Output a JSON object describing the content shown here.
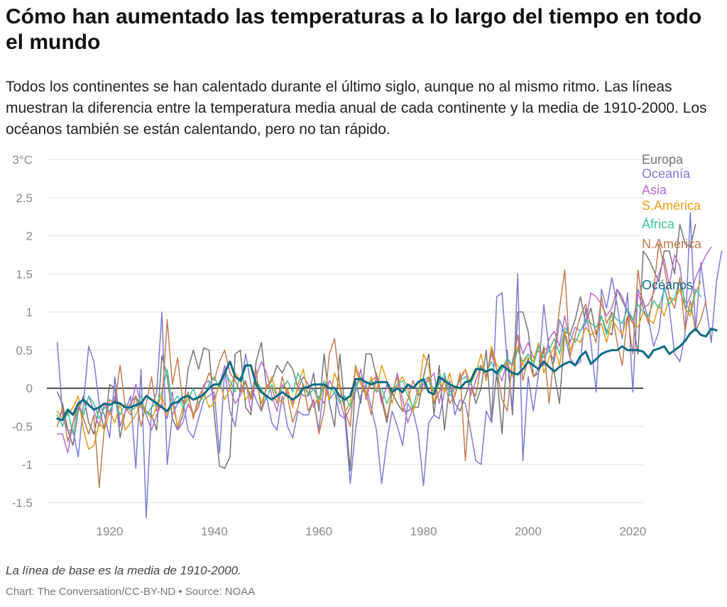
{
  "header": {
    "title": "Cómo han aumentado las temperaturas a lo largo del tiempo en todo el mundo",
    "subtitle": "Todos los continentes se han calentado durante el último siglo, aunque no al mismo ritmo. Las líneas muestran la diferencia entre la temperatura media anual de cada continente y la media de 1910-2000. Los océanos también se están calentando, pero no tan rápido."
  },
  "footer": {
    "note": "La línea de base es la media de 1910-2000.",
    "source": "Chart: The Conversation/CC-BY-ND • Source: NOAA"
  },
  "chart_data": {
    "type": "line",
    "title": "Cómo han aumentado las temperaturas a lo largo del tiempo en todo el mundo",
    "xlabel": "",
    "ylabel": "",
    "xlim": [
      1908,
      2022
    ],
    "ylim": [
      -1.75,
      3.0
    ],
    "grid": true,
    "legend_position": "right",
    "y_ticks": [
      {
        "value": 3,
        "label": "3°C"
      },
      {
        "value": 2.5,
        "label": "2.5"
      },
      {
        "value": 2,
        "label": "2"
      },
      {
        "value": 1.5,
        "label": "1.5"
      },
      {
        "value": 1,
        "label": "1"
      },
      {
        "value": 0.5,
        "label": "0.5"
      },
      {
        "value": 0,
        "label": "0"
      },
      {
        "value": -0.5,
        "label": "-0.5"
      },
      {
        "value": -1,
        "label": "-1"
      },
      {
        "value": -1.5,
        "label": "-1.5"
      }
    ],
    "x_ticks": [
      {
        "value": 1920,
        "label": "1920"
      },
      {
        "value": 1940,
        "label": "1940"
      },
      {
        "value": 1960,
        "label": "1960"
      },
      {
        "value": 1980,
        "label": "1980"
      },
      {
        "value": 2000,
        "label": "2000"
      },
      {
        "value": 2020,
        "label": "2020"
      }
    ],
    "x_start": 1910,
    "series": [
      {
        "name": "Europa",
        "color": "#737373",
        "width": 1.5,
        "values": [
          -0.05,
          -0.2,
          -0.55,
          -0.75,
          -0.3,
          -0.1,
          -0.45,
          -0.6,
          -0.25,
          -0.55,
          0.05,
          0.0,
          -0.65,
          -0.3,
          -0.2,
          -0.1,
          -0.25,
          -0.3,
          -0.35,
          -0.55,
          0.43,
          0.15,
          -0.4,
          -0.55,
          -0.35,
          0.25,
          0.5,
          0.25,
          0.53,
          0.5,
          -0.35,
          -1.02,
          -1.05,
          -0.9,
          0.45,
          0.5,
          -0.25,
          -0.35,
          0.35,
          0.6,
          0.0,
          0.1,
          0.3,
          0.2,
          0.35,
          0.25,
          0.0,
          -0.1,
          -0.1,
          0.2,
          -0.3,
          0.45,
          -0.2,
          -0.5,
          0.45,
          -0.3,
          -1.08,
          0.1,
          -0.2,
          0.45,
          0.45,
          0.15,
          -0.15,
          -0.45,
          -0.05,
          -0.2,
          -0.3,
          -0.3,
          -0.25,
          -0.25,
          0.15,
          0.45,
          -0.35,
          0.3,
          -0.55,
          0.05,
          -0.2,
          -0.3,
          -0.1,
          0.1,
          -0.2,
          0.0,
          0.5,
          -0.45,
          0.2,
          -0.6,
          0.5,
          -0.35,
          1.0,
          1.0,
          0.75,
          0.15,
          0.2,
          0.5,
          0.55,
          0.2,
          -0.2,
          0.75,
          0.7,
          0.9,
          1.2,
          0.85,
          1.05,
          0.7,
          0.95,
          0.75,
          0.7,
          1.3,
          1.15,
          1.0,
          0.9,
          0.45,
          1.8,
          1.7,
          1.55,
          1.4,
          1.8,
          1.8,
          1.5,
          2.15,
          1.9,
          1.85,
          2.15
        ]
      },
      {
        "name": "Oceanía",
        "color": "#7a7ad6",
        "width": 1.5,
        "values": [
          0.6,
          -0.35,
          -0.55,
          -0.55,
          -0.9,
          -0.2,
          0.55,
          0.35,
          -0.2,
          -0.35,
          -0.65,
          0.15,
          -0.5,
          -0.3,
          -0.1,
          -1.05,
          0.25,
          -1.7,
          -0.25,
          -0.05,
          1.0,
          -1.0,
          -0.35,
          -0.2,
          -0.15,
          -0.55,
          -0.65,
          -0.4,
          -0.15,
          -0.1,
          -0.05,
          -0.85,
          0.25,
          -0.3,
          -0.5,
          0.0,
          0.45,
          0.05,
          -0.15,
          -0.3,
          -0.1,
          -0.45,
          -0.55,
          -0.1,
          -0.5,
          -0.65,
          -0.3,
          -0.35,
          -0.35,
          -0.15,
          -0.55,
          0.05,
          -0.15,
          -0.05,
          -0.35,
          -0.4,
          -1.25,
          -0.55,
          -0.1,
          0.05,
          -0.25,
          -0.55,
          -1.25,
          -0.7,
          -0.3,
          -0.5,
          -0.75,
          -0.2,
          -0.3,
          -0.6,
          -1.28,
          -0.45,
          -0.35,
          -0.4,
          -0.05,
          0.1,
          -0.35,
          -0.15,
          -0.2,
          -0.55,
          -0.95,
          -1.0,
          -0.3,
          -0.45,
          1.2,
          1.25,
          0.35,
          -0.25,
          1.5,
          -0.95,
          0.15,
          -0.3,
          0.2,
          1.1,
          0.5,
          0.35,
          0.9,
          0.7,
          0.4,
          0.3,
          0.35,
          1.05,
          0.6,
          -0.05,
          1.3,
          1.05,
          1.45,
          1.1,
          0.65,
          1.25,
          -0.05,
          1.3,
          1.15,
          0.9,
          0.55,
          0.75,
          1.35,
          1.05,
          0.45,
          0.35,
          0.7,
          2.3,
          0.75,
          1.65,
          1.1,
          0.6,
          1.4,
          1.8
        ]
      },
      {
        "name": "Asia",
        "color": "#b36bd1",
        "width": 1.5,
        "values": [
          -0.6,
          -0.6,
          -0.85,
          -0.45,
          -0.25,
          -0.35,
          -0.1,
          -0.3,
          -0.5,
          -0.2,
          -0.35,
          -0.1,
          -0.5,
          -0.3,
          -0.25,
          0.05,
          -0.2,
          -0.35,
          -0.55,
          -0.35,
          -0.2,
          -0.4,
          -0.05,
          -0.55,
          -0.45,
          -0.2,
          -0.35,
          -0.25,
          0.05,
          0.1,
          -0.15,
          0.05,
          0.3,
          0.0,
          -0.2,
          -0.1,
          0.1,
          -0.3,
          0.15,
          0.35,
          0.2,
          -0.1,
          -0.3,
          0.05,
          -0.05,
          -0.2,
          0.0,
          0.15,
          0.05,
          -0.25,
          -0.1,
          -0.2,
          0.1,
          0.0,
          -0.15,
          -0.4,
          -0.25,
          -0.05,
          0.25,
          -0.15,
          0.1,
          0.15,
          -0.2,
          0.05,
          -0.1,
          0.2,
          -0.15,
          -0.45,
          -0.25,
          0.0,
          0.05,
          0.1,
          0.2,
          -0.2,
          0.15,
          -0.05,
          0.0,
          0.1,
          0.25,
          -0.1,
          0.1,
          0.3,
          0.15,
          0.45,
          0.25,
          0.1,
          0.35,
          0.3,
          0.7,
          0.45,
          0.6,
          0.4,
          0.5,
          0.3,
          0.65,
          0.75,
          0.55,
          0.95,
          0.6,
          0.8,
          0.75,
          0.85,
          1.25,
          1.2,
          1.1,
          0.95,
          1.05,
          1.3,
          1.2,
          1.0,
          0.85,
          1.25,
          1.05,
          1.1,
          1.25,
          1.5,
          1.7,
          1.35,
          1.75,
          1.6,
          1.05,
          1.2,
          1.45,
          1.6,
          1.75,
          1.85
        ]
      },
      {
        "name": "S.América",
        "color": "#e39c14",
        "width": 1.5,
        "values": [
          -0.3,
          -0.4,
          -0.35,
          -0.25,
          -0.1,
          -0.55,
          -0.8,
          -0.75,
          -0.45,
          -0.55,
          -0.3,
          -0.45,
          -0.2,
          -0.55,
          -0.45,
          -0.35,
          -0.2,
          -0.3,
          -0.4,
          -0.25,
          -0.1,
          -0.35,
          -0.2,
          -0.5,
          -0.25,
          -0.1,
          -0.35,
          -0.2,
          -0.05,
          -0.25,
          -0.2,
          0.1,
          -0.15,
          0.0,
          0.2,
          0.1,
          -0.15,
          -0.05,
          0.1,
          -0.2,
          0.0,
          0.15,
          -0.1,
          -0.2,
          0.0,
          -0.25,
          0.05,
          0.25,
          -0.1,
          0.0,
          -0.2,
          0.05,
          -0.15,
          0.2,
          0.0,
          -0.3,
          -0.2,
          0.25,
          0.05,
          -0.1,
          0.15,
          -0.05,
          0.3,
          0.1,
          -0.2,
          0.05,
          0.15,
          0.0,
          -0.3,
          -0.1,
          0.45,
          0.3,
          -0.2,
          0.1,
          -0.05,
          0.2,
          -0.1,
          0.15,
          0.25,
          0.05,
          0.2,
          0.45,
          0.1,
          0.55,
          0.3,
          0.25,
          0.35,
          0.15,
          0.55,
          0.3,
          0.45,
          0.35,
          0.6,
          0.2,
          0.4,
          0.55,
          0.3,
          0.75,
          0.5,
          0.65,
          0.6,
          0.8,
          0.7,
          0.75,
          0.85,
          0.6,
          0.9,
          0.8,
          0.7,
          0.95,
          0.85,
          0.8,
          1.0,
          0.9,
          0.85,
          1.1,
          0.95,
          1.2,
          1.15,
          1.3,
          1.05,
          0.95,
          1.25,
          1.4
        ]
      },
      {
        "name": "África",
        "color": "#3fc49a",
        "width": 1.5,
        "values": [
          -0.35,
          -0.5,
          -0.3,
          -0.6,
          -0.2,
          -0.35,
          -0.1,
          -0.2,
          -0.4,
          -0.25,
          -0.3,
          -0.15,
          -0.35,
          -0.2,
          -0.3,
          -0.25,
          -0.1,
          -0.35,
          -0.25,
          -0.2,
          -0.05,
          0.25,
          -0.2,
          -0.1,
          -0.25,
          -0.15,
          0.0,
          -0.2,
          -0.1,
          0.05,
          0.15,
          0.0,
          0.2,
          0.1,
          -0.05,
          0.15,
          0.05,
          -0.1,
          0.1,
          0.0,
          -0.15,
          0.05,
          -0.1,
          0.0,
          0.1,
          -0.05,
          0.2,
          0.05,
          -0.1,
          0.0,
          -0.15,
          0.1,
          0.0,
          -0.05,
          -0.2,
          -0.1,
          -0.25,
          0.0,
          0.15,
          0.05,
          0.1,
          -0.05,
          0.0,
          -0.2,
          -0.05,
          0.05,
          0.1,
          -0.1,
          -0.25,
          0.0,
          0.1,
          0.15,
          -0.05,
          0.05,
          0.2,
          -0.1,
          0.0,
          0.1,
          0.15,
          0.05,
          0.25,
          0.3,
          0.2,
          0.35,
          0.15,
          0.25,
          0.4,
          0.3,
          0.5,
          0.35,
          0.45,
          0.3,
          0.55,
          0.4,
          0.5,
          0.65,
          0.45,
          0.8,
          0.7,
          0.6,
          0.75,
          0.9,
          0.85,
          0.8,
          0.95,
          0.7,
          1.0,
          0.9,
          0.85,
          1.05,
          0.9,
          1.1,
          1.0,
          0.95,
          1.15,
          1.05,
          1.3,
          1.1,
          1.2,
          1.4,
          1.15,
          1.0,
          1.3,
          1.2
        ]
      },
      {
        "name": "N.América",
        "color": "#c47a4f",
        "width": 1.5,
        "values": [
          -0.5,
          -0.25,
          -0.7,
          -0.45,
          -0.2,
          -0.4,
          -0.6,
          -0.35,
          -1.3,
          -0.5,
          -0.15,
          -0.2,
          0.3,
          -0.25,
          -0.35,
          -0.1,
          -0.5,
          -0.2,
          0.15,
          -0.3,
          -0.2,
          0.9,
          0.05,
          0.4,
          -0.2,
          -0.05,
          -0.4,
          -0.1,
          0.0,
          0.2,
          0.1,
          0.35,
          0.5,
          0.2,
          0.1,
          -0.05,
          0.1,
          -0.15,
          0.25,
          -0.3,
          0.05,
          0.0,
          -0.2,
          0.15,
          -0.1,
          -0.45,
          -0.25,
          0.05,
          -0.3,
          -0.15,
          -0.6,
          -0.3,
          0.45,
          0.65,
          0.05,
          -0.3,
          -0.5,
          0.3,
          0.1,
          -0.05,
          -0.35,
          0.2,
          -0.1,
          -0.4,
          -0.05,
          0.15,
          -0.3,
          -0.15,
          0.1,
          -0.1,
          0.0,
          0.15,
          -0.2,
          -0.05,
          0.1,
          -0.2,
          -0.1,
          0.2,
          -0.95,
          0.0,
          -0.1,
          0.3,
          0.15,
          0.5,
          0.25,
          -0.15,
          -0.3,
          0.35,
          0.7,
          0.1,
          0.4,
          0.15,
          0.25,
          0.55,
          -0.2,
          0.45,
          1.05,
          1.55,
          0.4,
          0.7,
          0.95,
          1.1,
          0.8,
          0.6,
          1.2,
          0.85,
          1.0,
          0.6,
          0.3,
          0.95,
          0.45,
          1.55,
          1.05,
          0.85,
          1.3,
          1.9,
          1.6,
          1.2,
          1.05,
          1.45,
          0.75,
          1.15,
          0.75,
          0.9,
          1.15
        ]
      },
      {
        "name": "Océanos",
        "color": "#0f6b86",
        "width": 3,
        "values": [
          -0.4,
          -0.42,
          -0.28,
          -0.35,
          -0.2,
          -0.15,
          -0.22,
          -0.28,
          -0.25,
          -0.2,
          -0.22,
          -0.18,
          -0.2,
          -0.25,
          -0.25,
          -0.22,
          -0.2,
          -0.1,
          -0.15,
          -0.2,
          -0.25,
          -0.3,
          -0.2,
          -0.18,
          -0.12,
          -0.1,
          -0.15,
          -0.12,
          -0.08,
          0.0,
          0.05,
          0.05,
          0.2,
          0.35,
          0.15,
          0.1,
          0.3,
          0.3,
          0.05,
          -0.05,
          -0.1,
          -0.15,
          -0.1,
          -0.05,
          -0.1,
          -0.15,
          -0.1,
          0.0,
          0.02,
          0.05,
          0.05,
          0.05,
          0.0,
          0.0,
          -0.1,
          -0.15,
          -0.1,
          0.12,
          0.12,
          0.08,
          0.05,
          0.08,
          0.08,
          0.08,
          -0.05,
          0.0,
          -0.05,
          0.05,
          0.0,
          0.08,
          0.12,
          -0.05,
          -0.08,
          0.15,
          0.1,
          0.05,
          0.02,
          0.0,
          0.08,
          0.1,
          0.25,
          0.25,
          0.22,
          0.25,
          0.2,
          0.3,
          0.25,
          0.2,
          0.18,
          0.25,
          0.35,
          0.3,
          0.25,
          0.35,
          0.28,
          0.22,
          0.28,
          0.32,
          0.35,
          0.3,
          0.42,
          0.48,
          0.32,
          0.38,
          0.45,
          0.48,
          0.5,
          0.5,
          0.55,
          0.5,
          0.5,
          0.5,
          0.48,
          0.4,
          0.5,
          0.52,
          0.55,
          0.45,
          0.5,
          0.55,
          0.62,
          0.72,
          0.78,
          0.7,
          0.68,
          0.78,
          0.76
        ]
      }
    ]
  }
}
